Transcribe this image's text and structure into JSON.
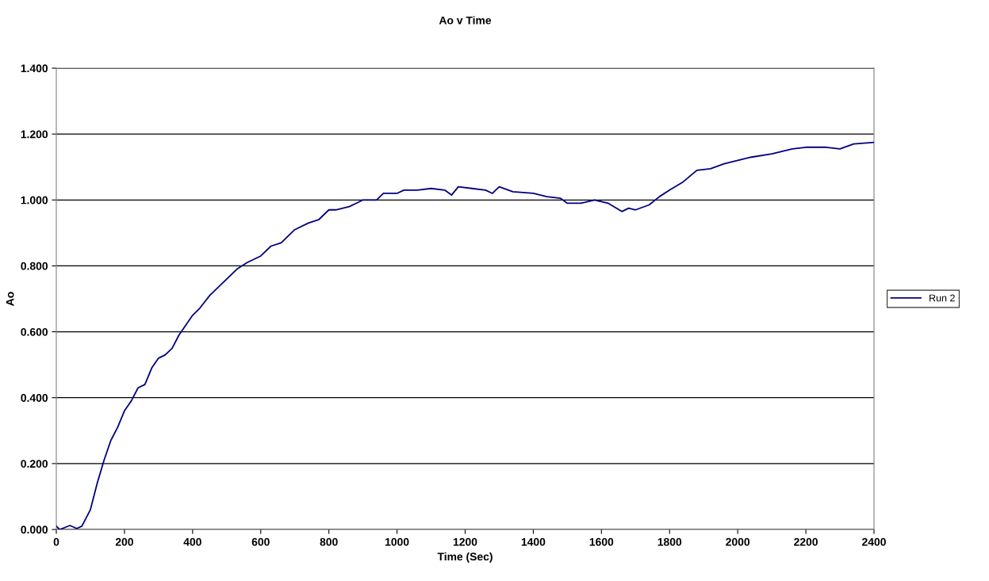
{
  "chart_data": {
    "type": "line",
    "title": "Ao v Time",
    "xlabel": "Time (Sec)",
    "ylabel": "Ao",
    "xlim": [
      0,
      2400
    ],
    "xticks": [
      0,
      200,
      400,
      600,
      800,
      1000,
      1200,
      1400,
      1600,
      1800,
      2000,
      2200,
      2400
    ],
    "ylim": [
      0,
      1.4
    ],
    "yticks": [
      {
        "value": 0,
        "label": "0.000"
      },
      {
        "value": 0.2,
        "label": "0.200"
      },
      {
        "value": 0.4,
        "label": "0.400"
      },
      {
        "value": 0.6,
        "label": "0.600"
      },
      {
        "value": 0.8,
        "label": "0.800"
      },
      {
        "value": 1.0,
        "label": "1.000"
      },
      {
        "value": 1.2,
        "label": "1.200"
      },
      {
        "value": 1.4,
        "label": "1.400"
      }
    ],
    "grid": "y",
    "legend": "right",
    "marker": "none",
    "line_style": "solid",
    "series": [
      {
        "name": "Run 2",
        "color": "#000080",
        "x": [
          0,
          10,
          40,
          60,
          75,
          100,
          120,
          140,
          160,
          180,
          200,
          220,
          240,
          260,
          280,
          300,
          320,
          340,
          360,
          380,
          400,
          420,
          450,
          480,
          500,
          530,
          560,
          600,
          630,
          660,
          700,
          740,
          770,
          800,
          820,
          860,
          880,
          900,
          940,
          960,
          1000,
          1020,
          1060,
          1100,
          1140,
          1160,
          1180,
          1220,
          1260,
          1280,
          1300,
          1340,
          1400,
          1440,
          1480,
          1500,
          1540,
          1580,
          1620,
          1660,
          1680,
          1700,
          1740,
          1770,
          1800,
          1840,
          1880,
          1920,
          1960,
          2000,
          2040,
          2100,
          2160,
          2200,
          2260,
          2300,
          2340,
          2400
        ],
        "values": [
          0.01,
          0.0,
          0.012,
          0.003,
          0.01,
          0.06,
          0.14,
          0.21,
          0.27,
          0.31,
          0.36,
          0.39,
          0.43,
          0.44,
          0.49,
          0.52,
          0.53,
          0.55,
          0.59,
          0.62,
          0.65,
          0.67,
          0.71,
          0.74,
          0.76,
          0.79,
          0.81,
          0.83,
          0.86,
          0.87,
          0.91,
          0.93,
          0.94,
          0.97,
          0.97,
          0.98,
          0.99,
          1.0,
          1.0,
          1.02,
          1.02,
          1.03,
          1.03,
          1.035,
          1.03,
          1.015,
          1.04,
          1.035,
          1.03,
          1.02,
          1.04,
          1.025,
          1.02,
          1.01,
          1.005,
          0.99,
          0.99,
          1.0,
          0.99,
          0.965,
          0.975,
          0.97,
          0.985,
          1.01,
          1.03,
          1.055,
          1.09,
          1.095,
          1.11,
          1.12,
          1.13,
          1.14,
          1.155,
          1.16,
          1.16,
          1.155,
          1.17,
          1.175
        ]
      }
    ]
  }
}
